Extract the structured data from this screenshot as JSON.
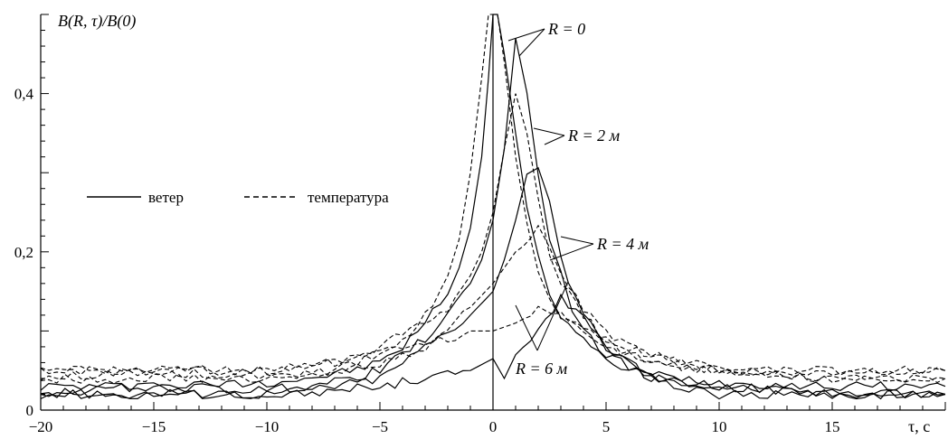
{
  "chart_data": {
    "type": "line",
    "ylabel": "B(R, τ)/B(0)",
    "xlabel": "τ, с",
    "xlim": [
      -20,
      20
    ],
    "ylim": [
      0,
      0.5
    ],
    "xticks": [
      -20,
      -15,
      -10,
      -5,
      0,
      5,
      10,
      15
    ],
    "xtick_labels": [
      "−20",
      "−15",
      "−10",
      "−5",
      "0",
      "5",
      "10",
      "15"
    ],
    "yticks": [
      0,
      0.2,
      0.4
    ],
    "ytick_labels": [
      "0",
      "0,2",
      "0,4"
    ],
    "grid": false,
    "legend_position": "left-middle",
    "legend": [
      {
        "label": "ветер",
        "style": "solid"
      },
      {
        "label": "температура",
        "style": "dashed"
      }
    ],
    "annotations": [
      "R = 0",
      "R = 2 м",
      "R = 4 м",
      "R = 6 м"
    ],
    "series": [
      {
        "style": "solid",
        "group": "R = 0",
        "x": [
          -20,
          -15,
          -10,
          -7,
          -5,
          -4,
          -3,
          -2,
          -1.5,
          -1,
          -0.5,
          -0.2,
          0,
          0.2,
          0.5,
          1,
          1.5,
          2,
          2.5,
          3,
          4,
          5,
          7,
          10,
          15,
          20
        ],
        "y": [
          0.03,
          0.03,
          0.035,
          0.045,
          0.06,
          0.08,
          0.11,
          0.15,
          0.18,
          0.23,
          0.32,
          0.42,
          0.5,
          0.5,
          0.45,
          0.35,
          0.26,
          0.19,
          0.15,
          0.12,
          0.09,
          0.06,
          0.045,
          0.035,
          0.03,
          0.03
        ]
      },
      {
        "style": "dashed",
        "group": "R = 0",
        "x": [
          -20,
          -15,
          -10,
          -7,
          -5,
          -4,
          -3,
          -2,
          -1.5,
          -1,
          -0.5,
          -0.2,
          0,
          0.2,
          0.5,
          1,
          1.5,
          2,
          2.5,
          3,
          4,
          5,
          7,
          10,
          15,
          20
        ],
        "y": [
          0.04,
          0.05,
          0.05,
          0.06,
          0.07,
          0.09,
          0.12,
          0.17,
          0.22,
          0.3,
          0.42,
          0.5,
          0.5,
          0.5,
          0.44,
          0.32,
          0.24,
          0.18,
          0.14,
          0.12,
          0.1,
          0.08,
          0.06,
          0.05,
          0.05,
          0.05
        ]
      },
      {
        "style": "solid",
        "group": "R = 2 м",
        "x": [
          -20,
          -15,
          -10,
          -7,
          -5,
          -4,
          -3,
          -2,
          -1,
          -0.5,
          0,
          0.5,
          1,
          1.5,
          2,
          2.5,
          3,
          3.5,
          4,
          5,
          6,
          7,
          10,
          15,
          20
        ],
        "y": [
          0.02,
          0.03,
          0.025,
          0.035,
          0.05,
          0.07,
          0.09,
          0.12,
          0.16,
          0.19,
          0.24,
          0.33,
          0.47,
          0.4,
          0.3,
          0.22,
          0.17,
          0.13,
          0.1,
          0.07,
          0.06,
          0.04,
          0.03,
          0.02,
          0.02
        ]
      },
      {
        "style": "dashed",
        "group": "R = 2 м",
        "x": [
          -20,
          -15,
          -10,
          -7,
          -5,
          -4,
          -3,
          -2,
          -1,
          -0.5,
          0,
          0.5,
          1,
          1.5,
          2,
          2.5,
          3,
          4,
          5,
          6,
          7,
          10,
          15,
          20
        ],
        "y": [
          0.05,
          0.05,
          0.05,
          0.06,
          0.08,
          0.1,
          0.11,
          0.13,
          0.17,
          0.2,
          0.25,
          0.33,
          0.4,
          0.35,
          0.27,
          0.2,
          0.16,
          0.12,
          0.09,
          0.07,
          0.06,
          0.05,
          0.04,
          0.04
        ]
      },
      {
        "style": "solid",
        "group": "R = 4 м",
        "x": [
          -20,
          -15,
          -10,
          -7,
          -5,
          -4,
          -3,
          -2,
          -1,
          0,
          0.5,
          1,
          1.5,
          2,
          2.5,
          3,
          4,
          5,
          6,
          7,
          10,
          15,
          20
        ],
        "y": [
          0.02,
          0.02,
          0.02,
          0.03,
          0.04,
          0.06,
          0.08,
          0.1,
          0.12,
          0.15,
          0.19,
          0.24,
          0.3,
          0.31,
          0.26,
          0.19,
          0.12,
          0.08,
          0.06,
          0.04,
          0.03,
          0.02,
          0.02
        ]
      },
      {
        "style": "dashed",
        "group": "R = 4 м",
        "x": [
          -20,
          -15,
          -10,
          -7,
          -5,
          -4,
          -3,
          -2,
          -1,
          0,
          1,
          2,
          2.5,
          3,
          4,
          5,
          6,
          7,
          10,
          15,
          20
        ],
        "y": [
          0.04,
          0.04,
          0.04,
          0.05,
          0.06,
          0.07,
          0.08,
          0.1,
          0.13,
          0.16,
          0.2,
          0.23,
          0.21,
          0.17,
          0.13,
          0.1,
          0.08,
          0.07,
          0.05,
          0.04,
          0.04
        ]
      },
      {
        "style": "solid",
        "group": "R = 6 м",
        "x": [
          -20,
          -15,
          -10,
          -7,
          -5,
          -4,
          -3,
          -2,
          -1,
          0,
          0.5,
          1,
          2,
          3,
          4,
          5,
          6,
          7,
          8,
          10,
          15,
          20
        ],
        "y": [
          0.02,
          0.02,
          0.02,
          0.025,
          0.03,
          0.035,
          0.04,
          0.045,
          0.05,
          0.065,
          0.04,
          0.07,
          0.1,
          0.14,
          0.12,
          0.08,
          0.05,
          0.04,
          0.03,
          0.02,
          0.02,
          0.02
        ]
      },
      {
        "style": "dashed",
        "group": "R = 6 м",
        "x": [
          -20,
          -15,
          -10,
          -7,
          -5,
          -4,
          -3,
          -2,
          -1,
          0,
          1,
          2,
          3,
          4,
          5,
          6,
          7,
          10,
          15,
          20
        ],
        "y": [
          0.05,
          0.05,
          0.04,
          0.05,
          0.07,
          0.08,
          0.08,
          0.09,
          0.1,
          0.1,
          0.11,
          0.13,
          0.12,
          0.1,
          0.09,
          0.08,
          0.07,
          0.05,
          0.05,
          0.05
        ]
      }
    ]
  }
}
